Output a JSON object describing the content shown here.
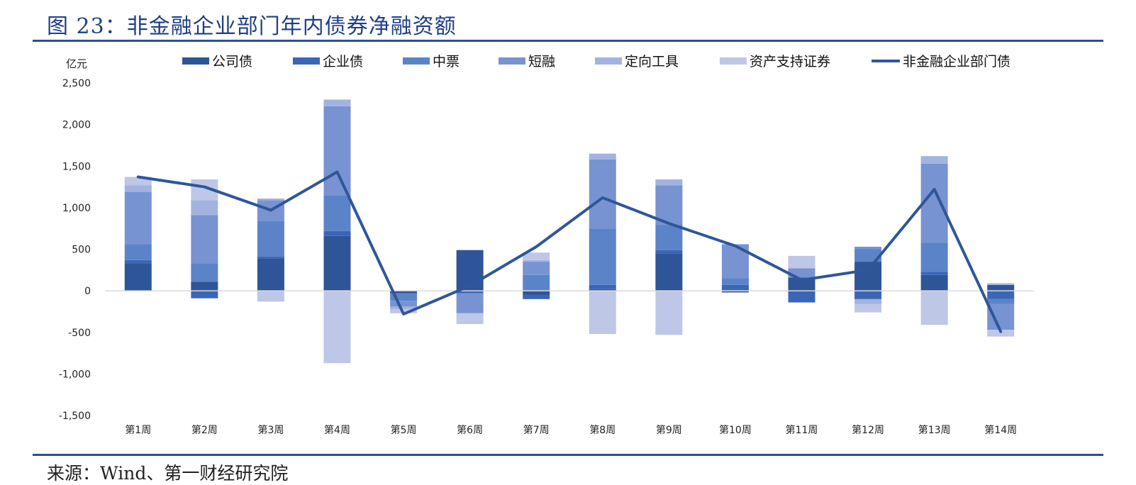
{
  "title": "图 23：非金融企业部门年内债券净融资额",
  "source": "来源：Wind、第一财经研究院",
  "chart_data": {
    "type": "bar",
    "stacked": true,
    "unit_label": "亿元",
    "categories": [
      "第1周",
      "第2周",
      "第3周",
      "第4周",
      "第5周",
      "第6周",
      "第7周",
      "第8周",
      "第9周",
      "第10周",
      "第11周",
      "第12周",
      "第13周",
      "第14周"
    ],
    "ylim": [
      -1500,
      2500
    ],
    "yticks": [
      2500,
      2000,
      1500,
      1000,
      500,
      0,
      -500,
      -1000,
      -1500
    ],
    "ytick_labels": [
      "2,500",
      "2,000",
      "1,500",
      "1,000",
      "500",
      "0",
      "-500",
      "-1,000",
      "-1,500"
    ],
    "legend_position": "top",
    "series": [
      {
        "name": "公司债",
        "color": "#2e5597",
        "values": [
          330,
          110,
          390,
          660,
          -30,
          490,
          -50,
          20,
          450,
          -20,
          160,
          350,
          190,
          70
        ]
      },
      {
        "name": "企业债",
        "color": "#3b66b6",
        "values": [
          40,
          -90,
          20,
          60,
          0,
          -30,
          -50,
          50,
          40,
          70,
          -140,
          -100,
          40,
          -100
        ]
      },
      {
        "name": "中票",
        "color": "#5b84c8",
        "values": [
          190,
          220,
          430,
          430,
          -90,
          0,
          190,
          680,
          300,
          80,
          0,
          150,
          350,
          -60
        ]
      },
      {
        "name": "短融",
        "color": "#7793d1",
        "values": [
          630,
          580,
          250,
          1070,
          -70,
          -240,
          160,
          830,
          480,
          410,
          110,
          30,
          950,
          -310
        ]
      },
      {
        "name": "定向工具",
        "color": "#a3b3df",
        "values": [
          80,
          180,
          20,
          80,
          -30,
          0,
          20,
          70,
          70,
          0,
          0,
          -60,
          90,
          20
        ]
      },
      {
        "name": "资产支持证券",
        "color": "#bec7e6",
        "values": [
          100,
          250,
          -130,
          -870,
          -50,
          -130,
          90,
          -520,
          -530,
          0,
          150,
          -100,
          -410,
          -80
        ]
      }
    ],
    "line_series": {
      "name": "非金融企业部门债",
      "color": "#2f569a",
      "values": [
        1370,
        1250,
        970,
        1430,
        -280,
        60,
        530,
        1120,
        810,
        540,
        130,
        250,
        1220,
        -490
      ]
    }
  }
}
